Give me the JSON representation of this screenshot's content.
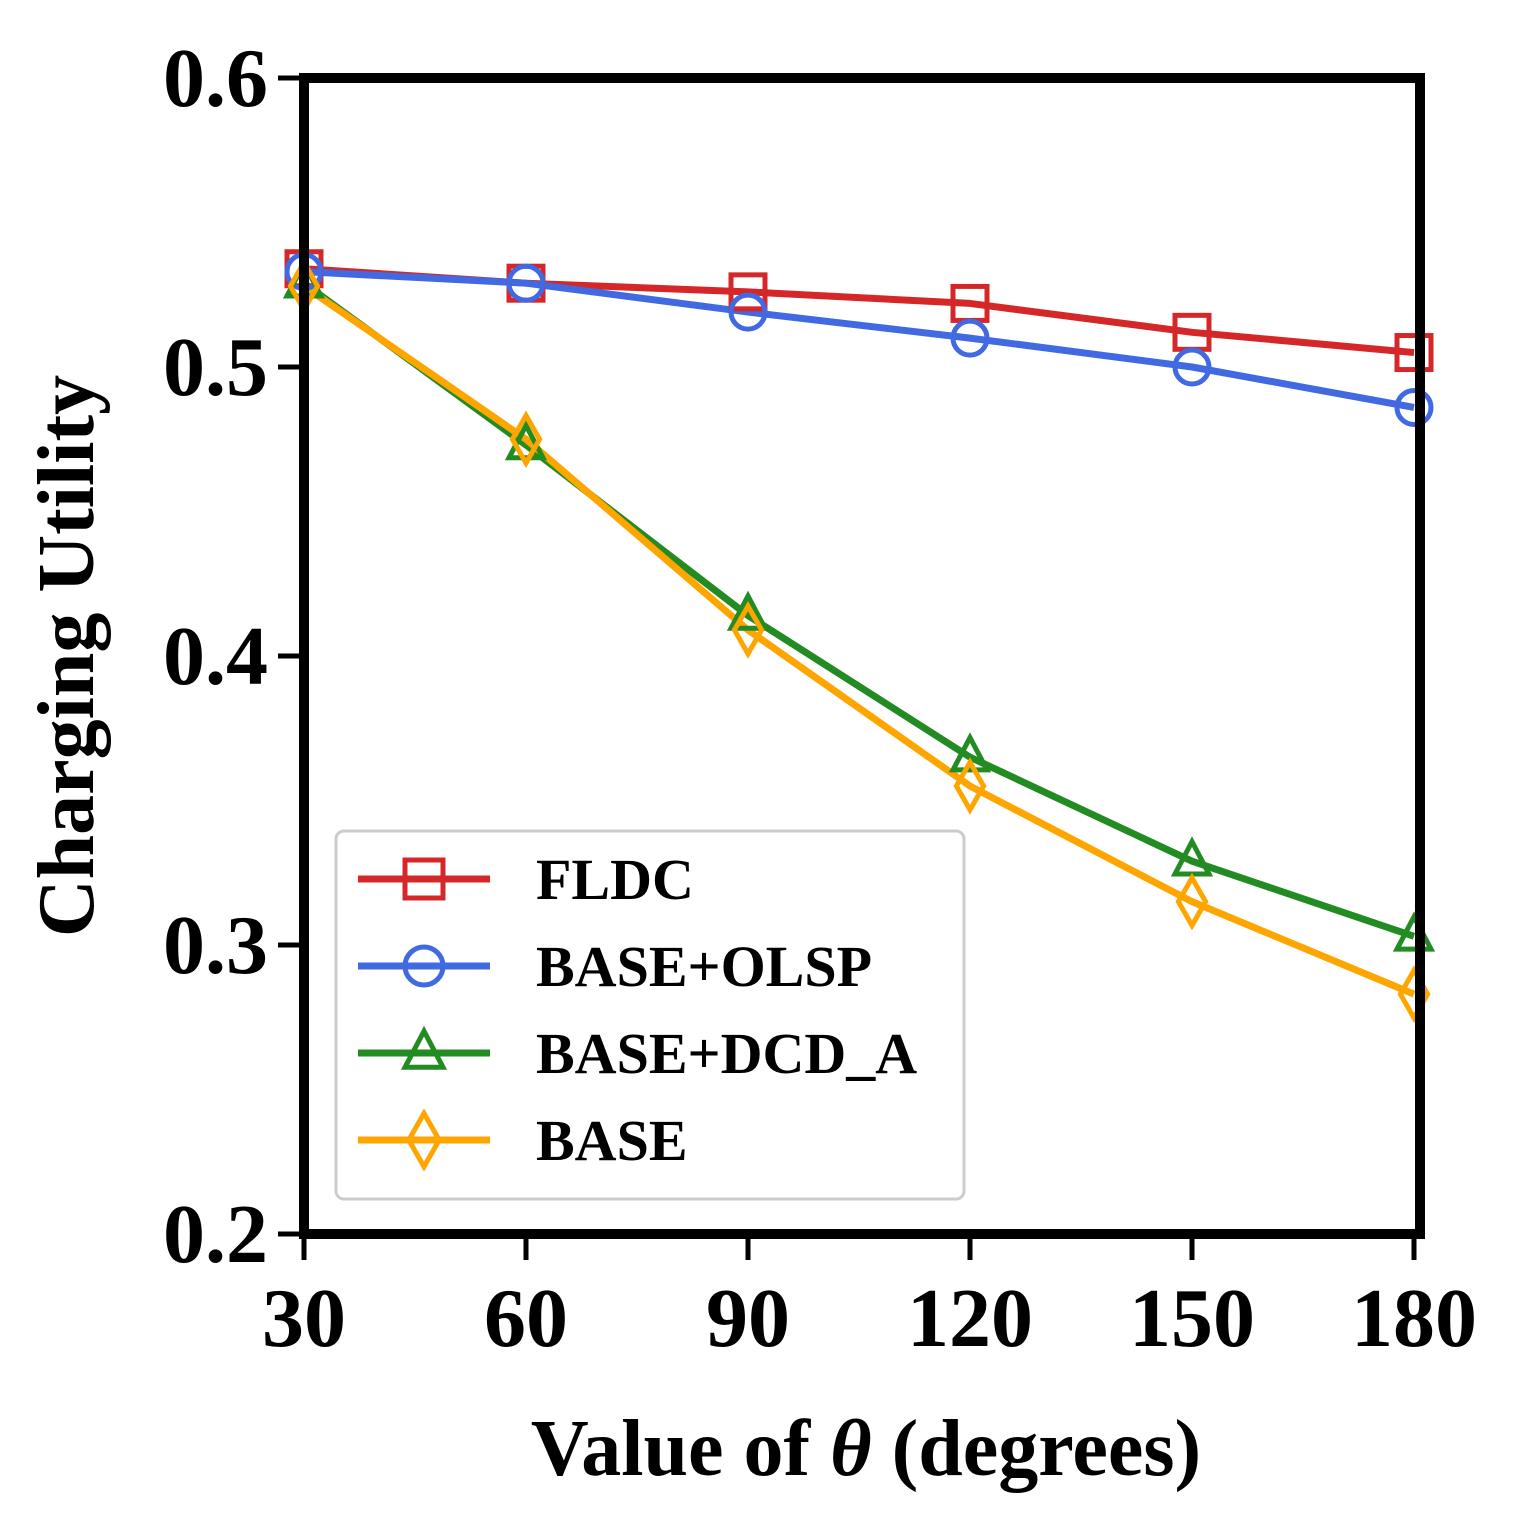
{
  "chart_data": {
    "type": "line",
    "title": "",
    "xlabel_prefix": "Value of ",
    "xlabel_symbol": "θ",
    "xlabel_suffix": " (degrees)",
    "ylabel": "Charging Utility",
    "x": [
      30,
      60,
      90,
      120,
      150,
      180
    ],
    "xlim": [
      30,
      180
    ],
    "ylim": [
      0.2,
      0.6
    ],
    "x_ticks": [
      30,
      60,
      90,
      120,
      150,
      180
    ],
    "x_tick_labels": [
      "30",
      "60",
      "90",
      "120",
      "150",
      "180"
    ],
    "y_ticks": [
      0.2,
      0.3,
      0.4,
      0.5,
      0.6
    ],
    "y_tick_labels": [
      "0.2",
      "0.3",
      "0.4",
      "0.5",
      "0.6"
    ],
    "grid": false,
    "legend_position": "lower-left",
    "series": [
      {
        "name": "FLDC",
        "marker": "square",
        "color": "#d62728",
        "values": [
          0.534,
          0.529,
          0.526,
          0.522,
          0.512,
          0.505
        ]
      },
      {
        "name": "BASE+OLSP",
        "marker": "circle",
        "color": "#4169e1",
        "values": [
          0.533,
          0.529,
          0.519,
          0.51,
          0.5,
          0.486
        ]
      },
      {
        "name": "BASE+DCD_A",
        "marker": "triangle",
        "color": "#228b22",
        "values": [
          0.529,
          0.473,
          0.414,
          0.365,
          0.329,
          0.303
        ]
      },
      {
        "name": "BASE",
        "marker": "diamond",
        "color": "#ffa500",
        "values": [
          0.528,
          0.475,
          0.409,
          0.355,
          0.315,
          0.283
        ]
      }
    ]
  }
}
